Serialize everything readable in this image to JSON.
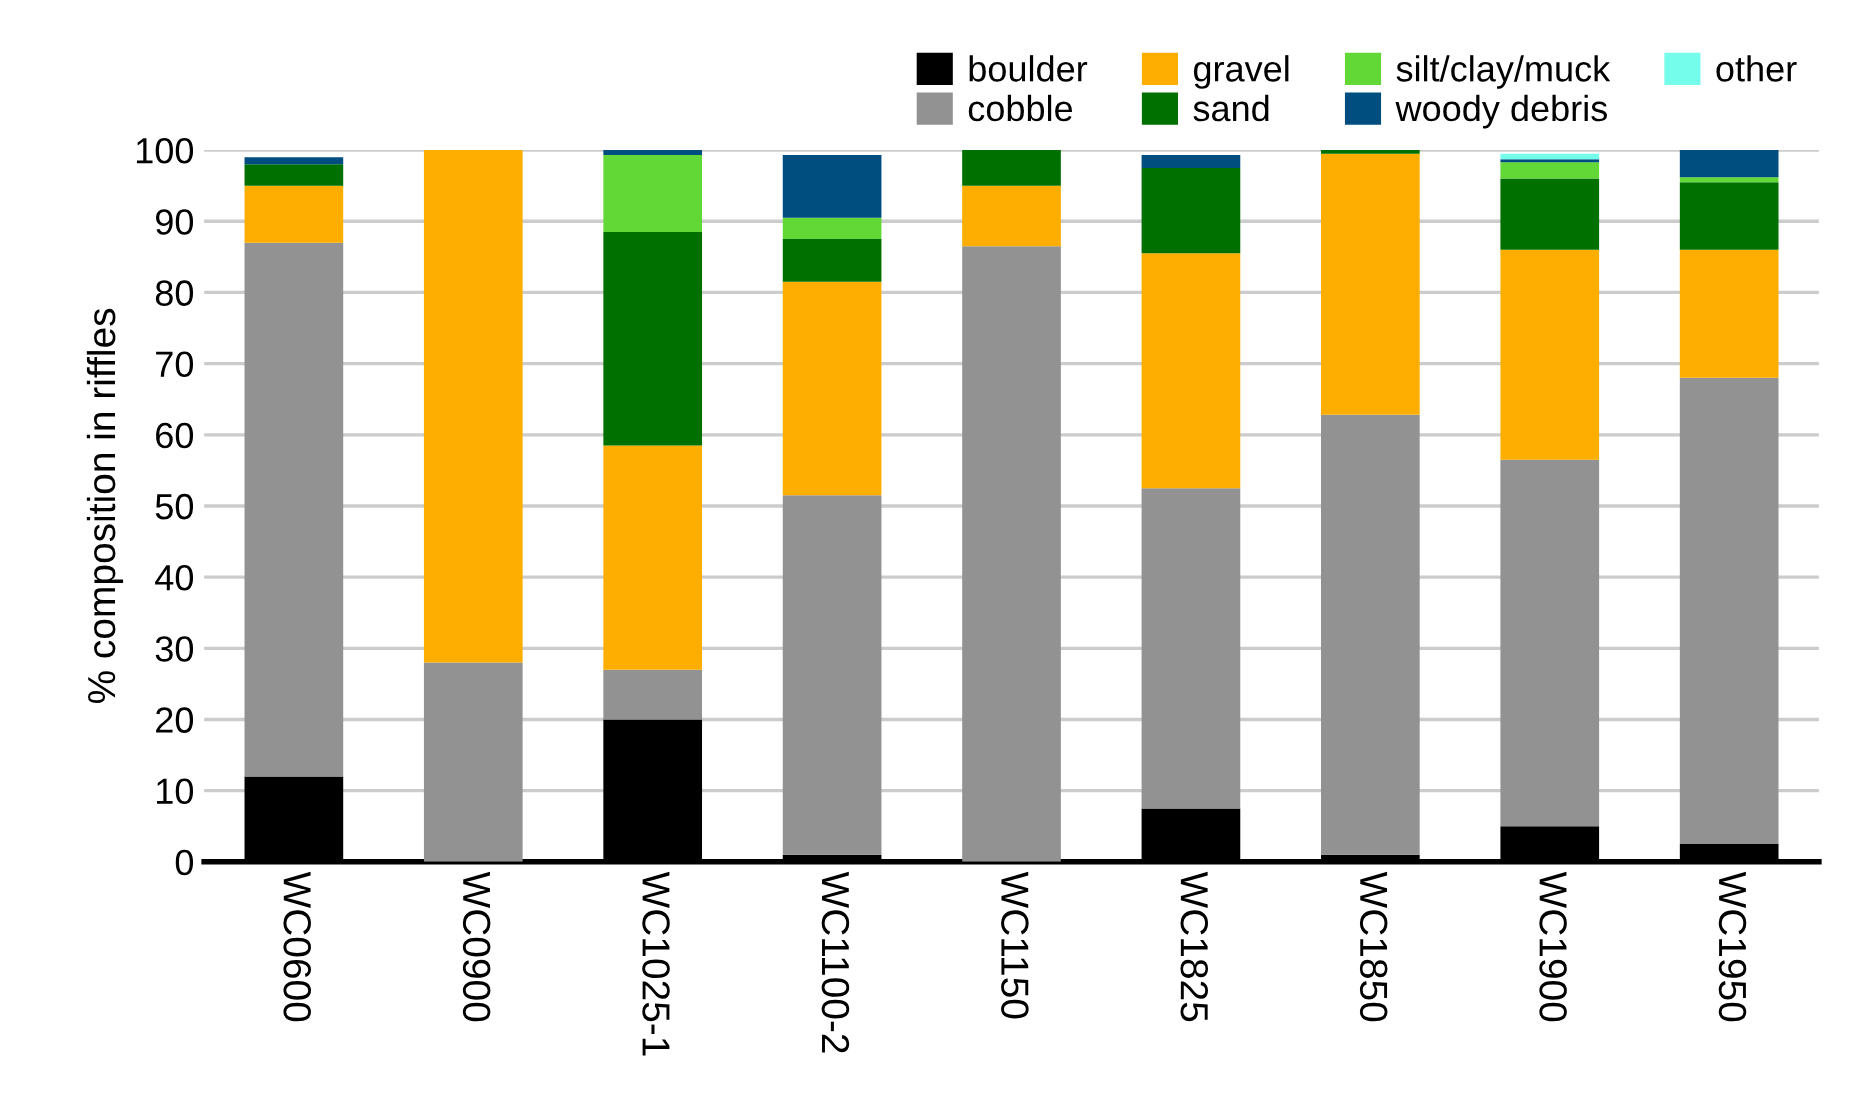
{
  "chart_data": {
    "type": "bar",
    "stacked": true,
    "ylabel": "% composition in riffles",
    "categories": [
      "WC0600",
      "WC0900",
      "WC1025-1",
      "WC1100-2",
      "WC1150",
      "WC1825",
      "WC1850",
      "WC1900",
      "WC1950"
    ],
    "series": [
      {
        "name": "boulder",
        "color": "#000000",
        "values": [
          12,
          0,
          20,
          1,
          0,
          7.5,
          1,
          5,
          2.5
        ]
      },
      {
        "name": "cobble",
        "color": "#929292",
        "values": [
          75,
          28,
          7,
          50.5,
          86.5,
          45,
          61.8,
          51.5,
          65.5
        ]
      },
      {
        "name": "gravel",
        "color": "#fdae00",
        "values": [
          8,
          72,
          31.5,
          30,
          8.5,
          33,
          36.7,
          29.5,
          18
        ]
      },
      {
        "name": "sand",
        "color": "#007000",
        "values": [
          3,
          0,
          30,
          6,
          5,
          12,
          0.5,
          10,
          9.5
        ]
      },
      {
        "name": "silt/clay/muck",
        "color": "#61d836",
        "values": [
          0,
          0,
          10.8,
          3,
          0,
          0,
          0,
          2.3,
          0.7
        ]
      },
      {
        "name": "woody debris",
        "color": "#004d80",
        "values": [
          1,
          0,
          0.7,
          8.8,
          0,
          1.8,
          0,
          0.4,
          3.8
        ]
      },
      {
        "name": "other",
        "color": "#73fdea",
        "values": [
          0,
          0,
          0,
          0,
          0,
          0,
          0,
          0.8,
          0
        ]
      }
    ],
    "ylim": [
      0,
      100
    ],
    "yticks": [
      0,
      10,
      20,
      30,
      40,
      50,
      60,
      70,
      80,
      90,
      100
    ],
    "grid": "y",
    "legend": "top right"
  }
}
